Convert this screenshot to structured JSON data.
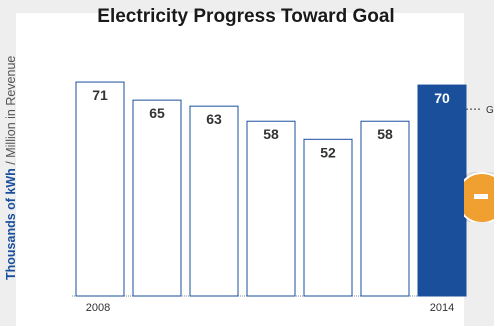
{
  "chart_data": {
    "type": "bar",
    "title": "Electricity Progress Toward Goal",
    "ylabel_strong": "Thousands of kWh",
    "ylabel_rest": " / Million in Revenue",
    "values": [
      71,
      65,
      63,
      58,
      52,
      58,
      70
    ],
    "first_x_label": "2008",
    "last_x_label": "2014",
    "highlight_index": 6,
    "goal": {
      "value": 62,
      "label": "Goal"
    },
    "ylim": [
      0,
      75
    ],
    "grid": false,
    "colors": {
      "bar_fill": "#ffffff",
      "bar_stroke": "#1a4f9c",
      "highlight": "#1a4f9c",
      "label_dark": "#333333",
      "label_light": "#ffffff"
    }
  },
  "side_badge": {
    "icon": "minus-icon",
    "color": "#f0a030"
  }
}
